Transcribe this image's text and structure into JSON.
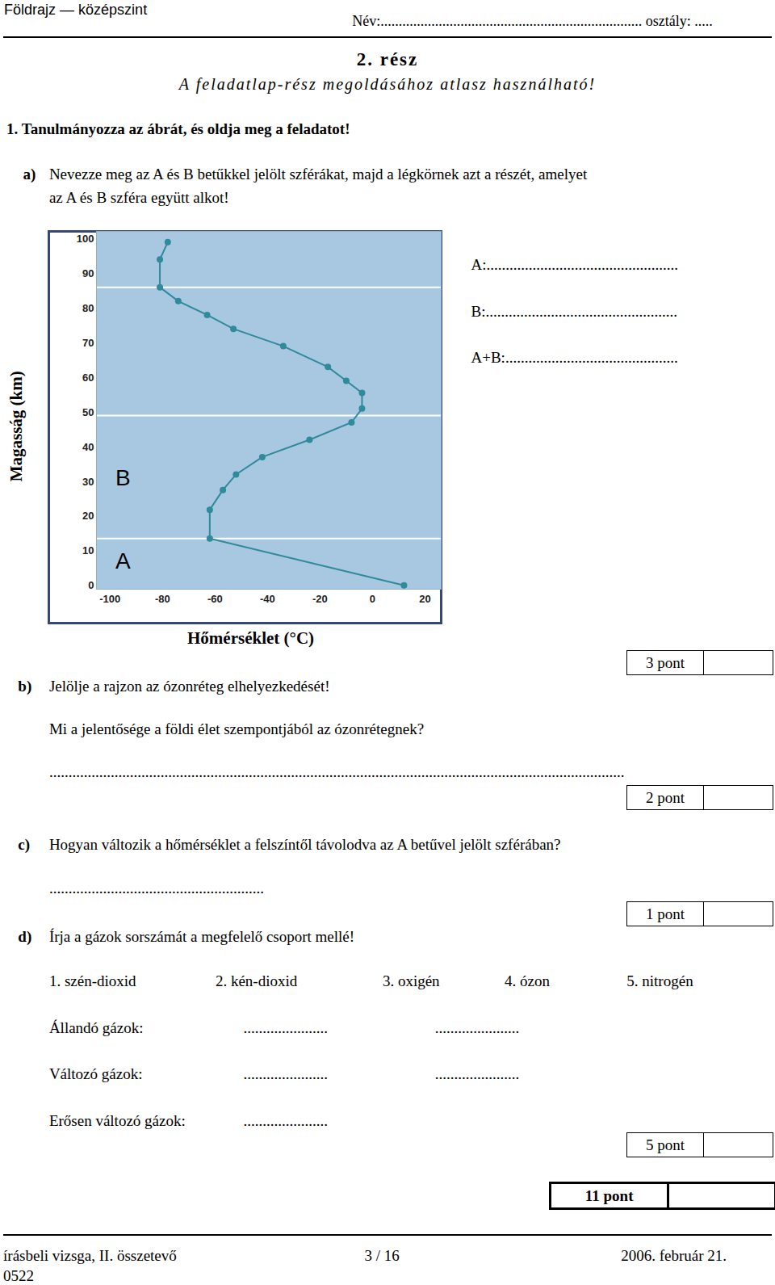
{
  "header": {
    "subject": "Földrajz — középszint",
    "name_field": "Név:........................................................................ osztály: ....."
  },
  "part": {
    "title": "2. rész",
    "note": "A feladatlap-rész megoldásához atlasz használható!"
  },
  "task": {
    "number": "1.",
    "instruction": "Tanulmányozza az ábrát, és oldja meg a feladatot!"
  },
  "questions": {
    "a": {
      "label": "a)",
      "text": [
        "Nevezze meg az A és B betűkkel jelölt szférákat, majd a légkörnek azt a részét, amelyet",
        "az A és B szféra együtt alkot!"
      ],
      "answers": [
        "A:..................................................",
        "B:..................................................",
        "A+B:............................................."
      ],
      "points": "3 pont"
    },
    "b": {
      "label": "b)",
      "text": "Jelölje a rajzon az ózonréteg elhelyezkedését!",
      "question": "Mi a jelentősége a földi élet szempontjából az ózonrétegnek?",
      "answer": "......................................................................................................................................................",
      "points": "2 pont"
    },
    "c": {
      "label": "c)",
      "text": "Hogyan változik a hőmérséklet a felszíntől távolodva az A betűvel jelölt szférában?",
      "answer": "........................................................",
      "points": "1 pont"
    },
    "d": {
      "label": "d)",
      "text": "Írja a gázok sorszámát a megfelelő csoport mellé!",
      "gases": [
        "1. szén-dioxid",
        "2. kén-dioxid",
        "3. oxigén",
        "4. ózon",
        "5. nitrogén"
      ],
      "groups": [
        {
          "label": "Állandó gázok:",
          "blanks": [
            "......................",
            "......................"
          ]
        },
        {
          "label": "Változó gázok:",
          "blanks": [
            "......................",
            "......................"
          ]
        },
        {
          "label": "Erősen változó gázok:",
          "blanks": [
            "......................"
          ]
        }
      ],
      "points": "5 pont"
    }
  },
  "total": "11 pont",
  "footer": {
    "left": "írásbeli vizsga, II. összetevő",
    "center": "3 / 16",
    "right": "2006. február 21.",
    "code": "0522"
  },
  "chart_data": {
    "type": "line",
    "x_label": "Hőmérséklet (°C)",
    "y_label": "Magasság (km)",
    "x": [
      12,
      -62,
      -62,
      -57,
      -52,
      -42,
      -24,
      -8,
      -4,
      -4,
      -10,
      -17,
      -34,
      -53,
      -63,
      -74,
      -81,
      -81,
      -78
    ],
    "y": [
      0,
      13.5,
      21.8,
      27.5,
      32,
      37,
      42,
      47,
      51,
      55.5,
      59,
      63,
      69,
      74,
      78,
      82,
      86,
      94,
      99
    ],
    "xlim": [
      -105,
      26
    ],
    "ylim": [
      -1,
      102
    ],
    "xticks": [
      -100,
      -80,
      -60,
      -40,
      -20,
      0,
      20
    ],
    "yticks": [
      0,
      10,
      20,
      30,
      40,
      50,
      60,
      70,
      80,
      90,
      100
    ],
    "boundaries": [
      13.5,
      49,
      86
    ],
    "annotations": [
      {
        "text": "A",
        "x": -95,
        "y": 7
      },
      {
        "text": "B",
        "x": -95,
        "y": 31
      }
    ],
    "color": "#2f8a9c",
    "marker": "circle",
    "grid": false
  }
}
